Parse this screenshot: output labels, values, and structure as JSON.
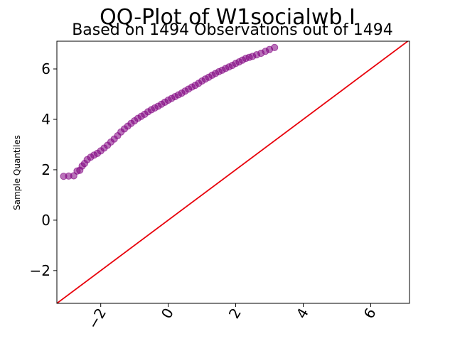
{
  "chart_data": {
    "type": "scatter",
    "title": "QQ-Plot of W1socialwb I",
    "subtitle": "Based on 1494 Observations out of 1494",
    "xlabel": "",
    "ylabel": "Sample Quantiles",
    "xlim": [
      -3.3,
      7.15
    ],
    "ylim": [
      -3.3,
      7.1
    ],
    "xticks": [
      -2,
      0,
      2,
      4,
      6
    ],
    "yticks": [
      -2,
      0,
      2,
      4,
      6
    ],
    "xtick_labels": [
      "−2",
      "0",
      "2",
      "4",
      "6"
    ],
    "ytick_labels": [
      "−2",
      "0",
      "2",
      "4",
      "6"
    ],
    "xtick_rotation": -60,
    "grid": false,
    "marker_color": "#800080",
    "line_color": "#e8000b",
    "reference_line": {
      "slope": 1,
      "intercept": 0
    },
    "series": [
      {
        "x": [
          -3.1,
          -2.95,
          -2.8,
          -2.7,
          -2.62,
          -2.55,
          -2.48,
          -2.4,
          -2.3,
          -2.2,
          -2.1,
          -2.0,
          -1.9,
          -1.8,
          -1.7,
          -1.6,
          -1.5,
          -1.4,
          -1.3,
          -1.2,
          -1.1,
          -1.0,
          -0.9,
          -0.8,
          -0.7,
          -0.6,
          -0.5,
          -0.4,
          -0.3,
          -0.2,
          -0.1,
          0.0,
          0.1,
          0.2,
          0.3,
          0.4,
          0.5,
          0.6,
          0.7,
          0.8,
          0.9,
          1.0,
          1.1,
          1.2,
          1.3,
          1.4,
          1.5,
          1.6,
          1.7,
          1.8,
          1.9,
          2.0,
          2.1,
          2.2,
          2.3,
          2.4,
          2.5,
          2.62,
          2.75,
          2.88,
          3.0,
          3.15
        ],
        "y": [
          1.74,
          1.75,
          1.76,
          1.95,
          1.98,
          2.15,
          2.25,
          2.4,
          2.5,
          2.58,
          2.65,
          2.75,
          2.86,
          2.97,
          3.1,
          3.22,
          3.35,
          3.5,
          3.62,
          3.73,
          3.84,
          3.94,
          4.04,
          4.12,
          4.2,
          4.3,
          4.38,
          4.45,
          4.52,
          4.6,
          4.68,
          4.76,
          4.83,
          4.9,
          4.97,
          5.04,
          5.12,
          5.2,
          5.28,
          5.35,
          5.43,
          5.52,
          5.6,
          5.67,
          5.75,
          5.82,
          5.89,
          5.95,
          6.02,
          6.08,
          6.14,
          6.22,
          6.28,
          6.35,
          6.42,
          6.46,
          6.5,
          6.56,
          6.62,
          6.7,
          6.77,
          6.85
        ]
      }
    ]
  }
}
